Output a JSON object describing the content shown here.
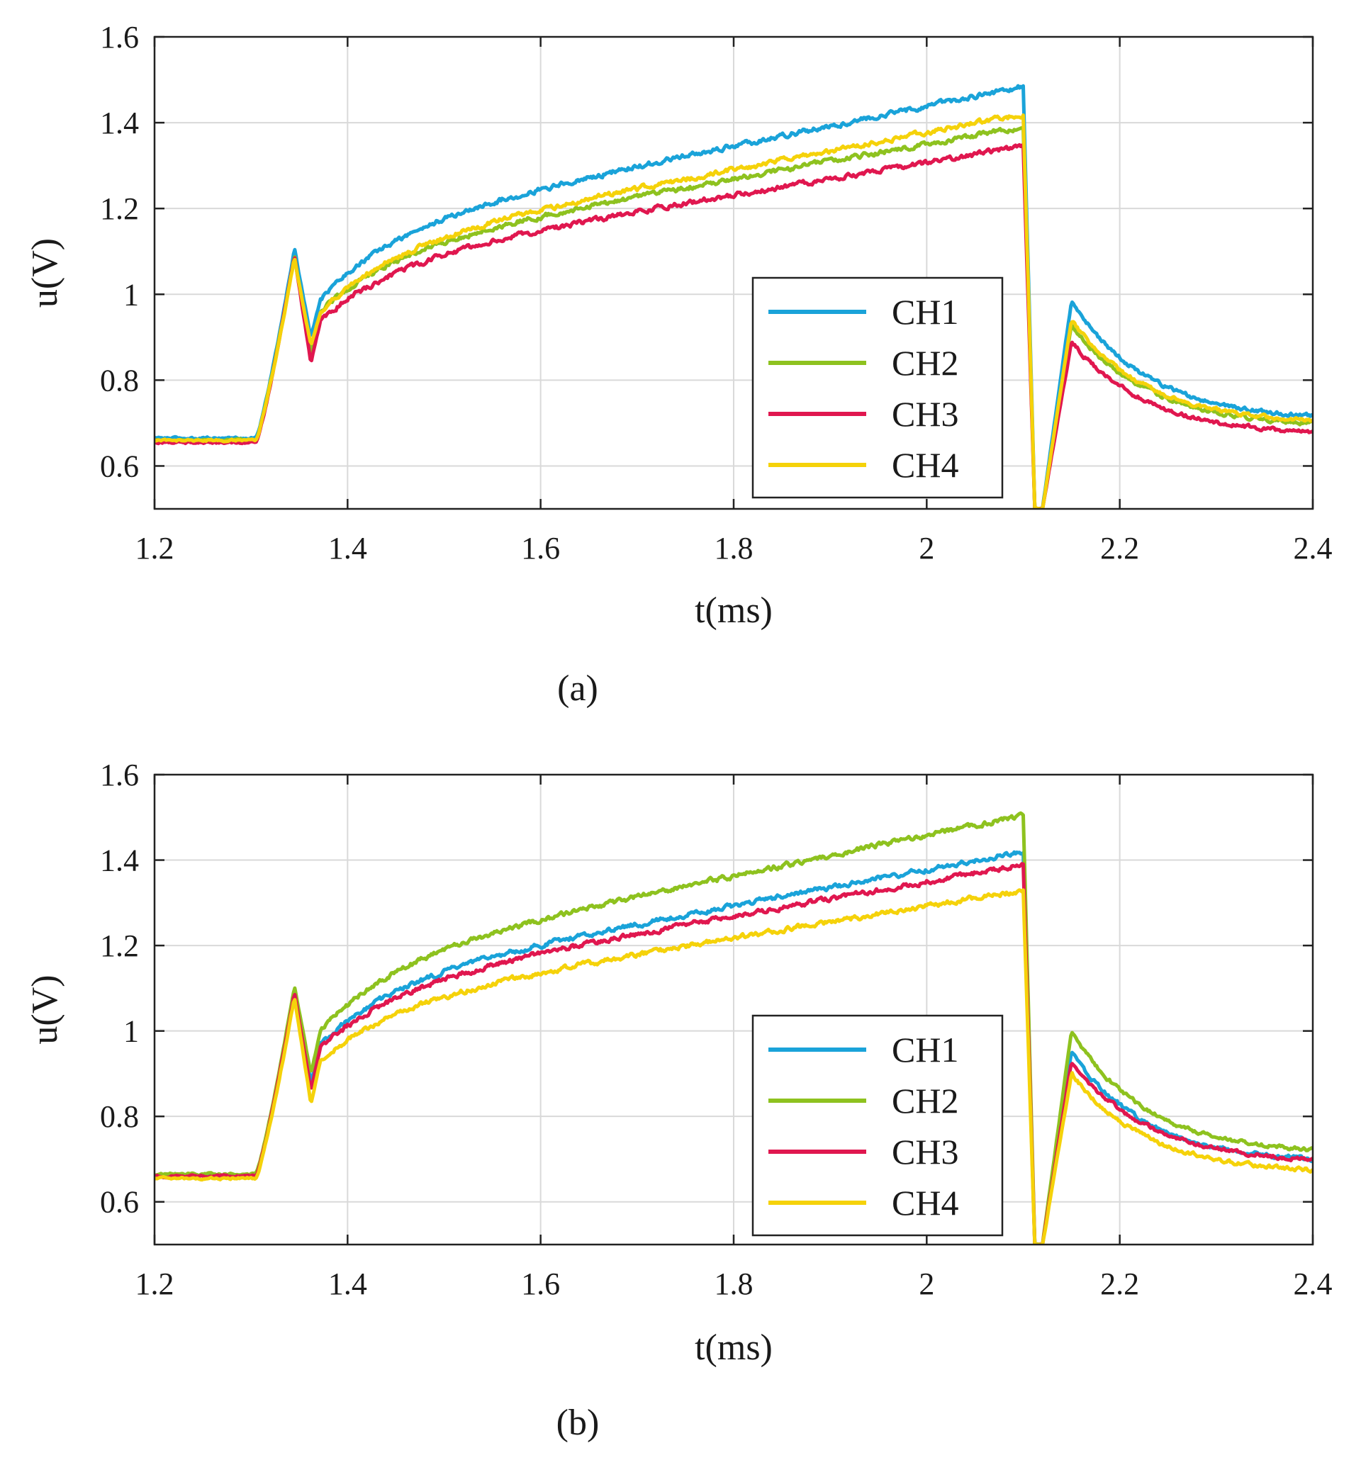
{
  "chart_data": [
    {
      "type": "line",
      "panel_label": "(a)",
      "xlabel": "t(ms)",
      "ylabel": "u(V)",
      "xlim": [
        1.2,
        2.4
      ],
      "ylim": [
        0.5,
        1.6
      ],
      "xticks": [
        1.2,
        1.4,
        1.6,
        1.8,
        2,
        2.2,
        2.4
      ],
      "xtick_labels": [
        "1.2",
        "1.4",
        "1.6",
        "1.8",
        "2",
        "2.2",
        "2.4"
      ],
      "yticks": [
        0.6,
        0.8,
        1,
        1.2,
        1.4,
        1.6
      ],
      "ytick_labels": [
        "0.6",
        "0.8",
        "1",
        "1.2",
        "1.4",
        "1.6"
      ],
      "grid": true,
      "legend_position": "right-inside",
      "series": [
        {
          "name": "CH1",
          "color": "#1aa3d9",
          "key": {
            "start": 0.665,
            "rise": 1.105,
            "dip": 0.9,
            "ramp_start": 0.99,
            "ramp_end": 1.485,
            "drop_min": 0.5,
            "rebound": 0.985,
            "final": 0.705
          }
        },
        {
          "name": "CH2",
          "color": "#8ec21f",
          "key": {
            "start": 0.66,
            "rise": 1.09,
            "dip": 0.86,
            "ramp_start": 0.96,
            "ramp_end": 1.39,
            "drop_min": 0.5,
            "rebound": 0.93,
            "final": 0.69
          }
        },
        {
          "name": "CH3",
          "color": "#e0174f",
          "key": {
            "start": 0.655,
            "rise": 1.09,
            "dip": 0.84,
            "ramp_start": 0.94,
            "ramp_end": 1.345,
            "drop_min": 0.5,
            "rebound": 0.89,
            "final": 0.67
          }
        },
        {
          "name": "CH4",
          "color": "#f5d20a",
          "key": {
            "start": 0.66,
            "rise": 1.085,
            "dip": 0.88,
            "ramp_start": 0.96,
            "ramp_end": 1.42,
            "drop_min": 0.5,
            "rebound": 0.94,
            "final": 0.695
          }
        }
      ]
    },
    {
      "type": "line",
      "panel_label": "(b)",
      "xlabel": "t(ms)",
      "ylabel": "u(V)",
      "xlim": [
        1.2,
        2.4
      ],
      "ylim": [
        0.5,
        1.6
      ],
      "xticks": [
        1.2,
        1.4,
        1.6,
        1.8,
        2,
        2.2,
        2.4
      ],
      "xtick_labels": [
        "1.2",
        "1.4",
        "1.6",
        "1.8",
        "2",
        "2.2",
        "2.4"
      ],
      "yticks": [
        0.6,
        0.8,
        1,
        1.2,
        1.4,
        1.6
      ],
      "ytick_labels": [
        "0.6",
        "0.8",
        "1",
        "1.2",
        "1.4",
        "1.6"
      ],
      "grid": true,
      "legend_position": "right-inside",
      "series": [
        {
          "name": "CH1",
          "color": "#1aa3d9",
          "key": {
            "start": 0.66,
            "rise": 1.1,
            "dip": 0.88,
            "ramp_start": 0.97,
            "ramp_end": 1.42,
            "drop_min": 0.5,
            "rebound": 0.95,
            "final": 0.69
          }
        },
        {
          "name": "CH2",
          "color": "#8ec21f",
          "key": {
            "start": 0.665,
            "rise": 1.105,
            "dip": 0.9,
            "ramp_start": 1.0,
            "ramp_end": 1.505,
            "drop_min": 0.5,
            "rebound": 1.0,
            "final": 0.71
          }
        },
        {
          "name": "CH3",
          "color": "#e0174f",
          "key": {
            "start": 0.66,
            "rise": 1.09,
            "dip": 0.86,
            "ramp_start": 0.96,
            "ramp_end": 1.39,
            "drop_min": 0.5,
            "rebound": 0.93,
            "final": 0.69
          }
        },
        {
          "name": "CH4",
          "color": "#f5d20a",
          "key": {
            "start": 0.655,
            "rise": 1.08,
            "dip": 0.83,
            "ramp_start": 0.93,
            "ramp_end": 1.33,
            "drop_min": 0.5,
            "rebound": 0.9,
            "final": 0.665
          }
        }
      ]
    }
  ]
}
